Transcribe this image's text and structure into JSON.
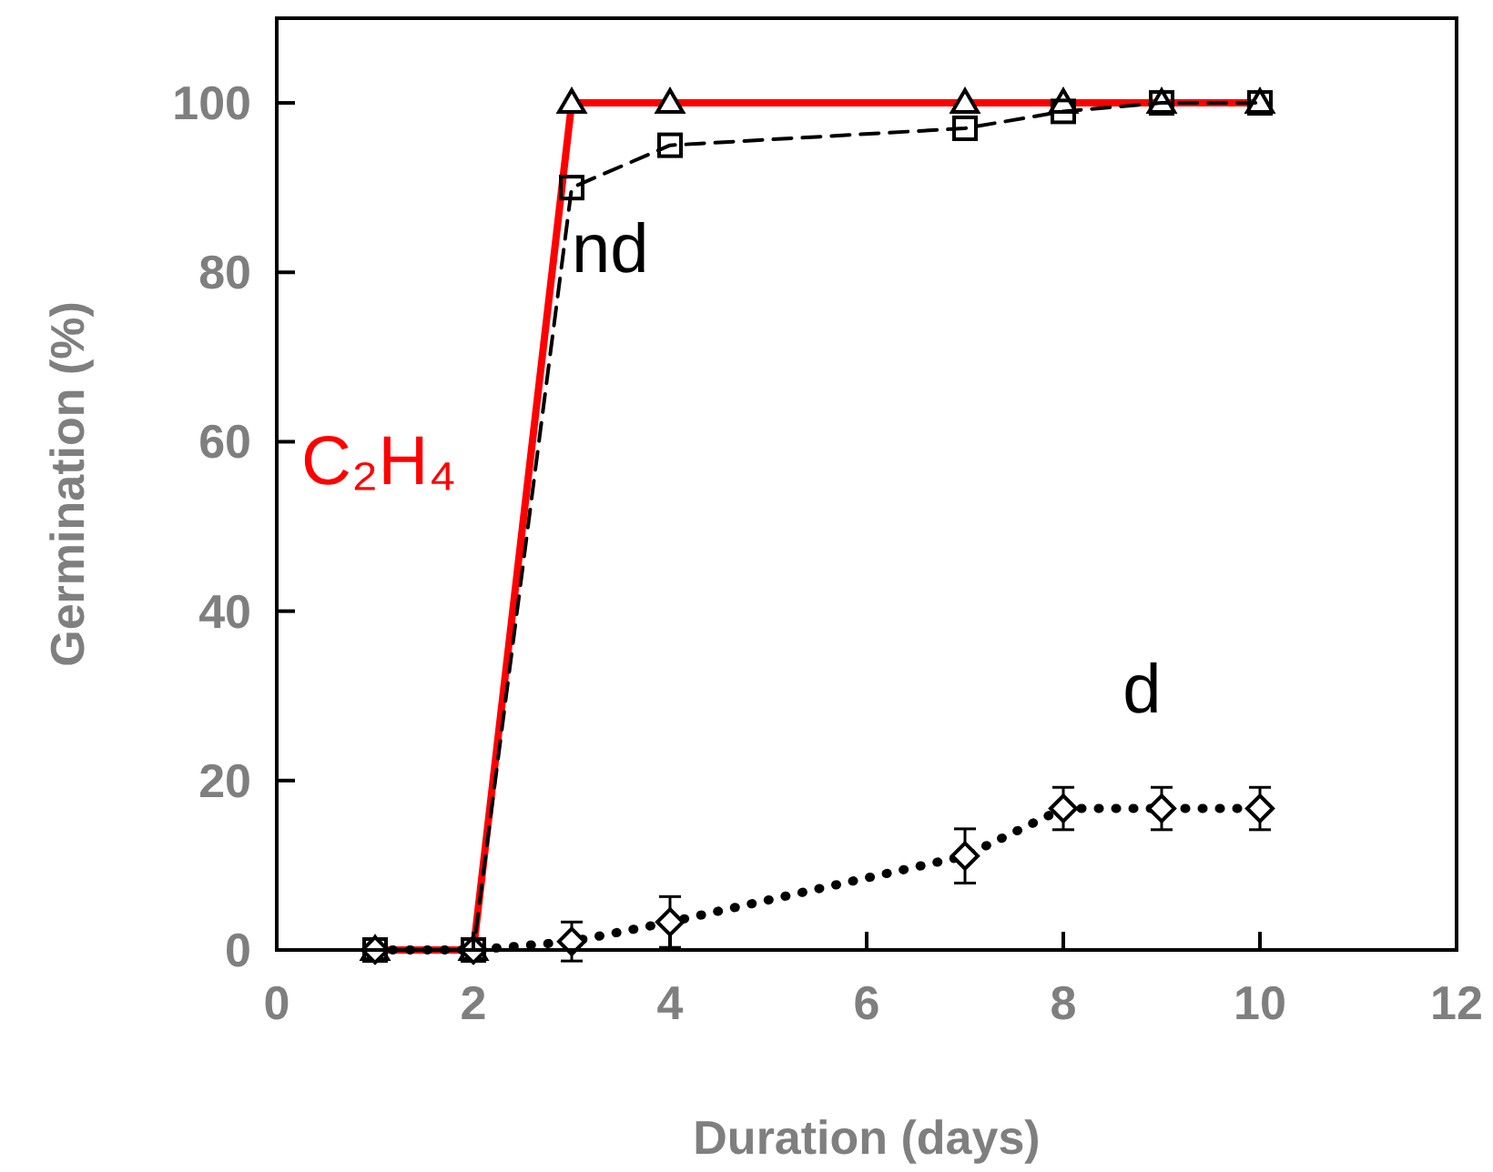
{
  "chart_data": {
    "type": "line",
    "xlabel": "Duration (days)",
    "ylabel": "Germination (%)",
    "xlim": [
      0,
      12
    ],
    "xticks": [
      0,
      2,
      4,
      6,
      8,
      10,
      12
    ],
    "ylim": [
      0,
      110
    ],
    "yticks": [
      0,
      20,
      40,
      60,
      80,
      100
    ],
    "grid": false,
    "series": [
      {
        "name": "C₂H₄",
        "color": "#ff0000",
        "marker": "triangle",
        "line_style": "solid",
        "x": [
          1,
          2,
          3,
          4,
          7,
          8,
          9,
          10
        ],
        "values": [
          0,
          0,
          100,
          100,
          100,
          100,
          100,
          100
        ]
      },
      {
        "name": "nd",
        "color": "#000000",
        "marker": "square",
        "line_style": "dashed",
        "x": [
          1,
          2,
          3,
          4,
          7,
          8,
          9,
          10
        ],
        "values": [
          0,
          0,
          90,
          95,
          97,
          99,
          100,
          100
        ]
      },
      {
        "name": "d",
        "color": "#000000",
        "marker": "diamond",
        "line_style": "dotted",
        "x": [
          1,
          2,
          3,
          4,
          7,
          8,
          9,
          10
        ],
        "values": [
          0,
          0,
          1,
          3.3,
          11.1,
          16.7,
          16.7,
          16.7
        ],
        "errors": [
          null,
          null,
          2.3,
          3,
          3.2,
          2.5,
          2.5,
          2.5
        ]
      }
    ]
  }
}
